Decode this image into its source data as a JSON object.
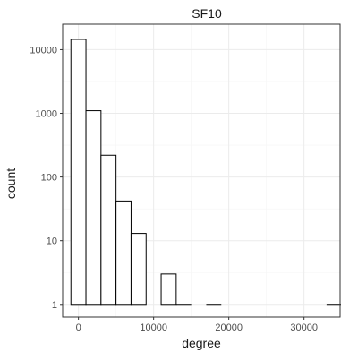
{
  "chart_data": {
    "type": "bar",
    "title": "SF10",
    "xlabel": "degree",
    "ylabel": "count",
    "y_scale": "log10",
    "grid": true,
    "x_range": [
      -2100,
      34800
    ],
    "y_range_log10": [
      -0.2,
      4.4
    ],
    "x_ticks": [
      0,
      10000,
      20000,
      30000
    ],
    "x_tick_labels": [
      "0",
      "10000",
      "20000",
      "30000"
    ],
    "y_ticks": [
      1,
      10,
      100,
      1000,
      10000
    ],
    "y_tick_labels": [
      "1",
      "10",
      "100",
      "1000",
      "10000"
    ],
    "bin_width": 2000,
    "bins": [
      {
        "x0": -1000,
        "x1": 1000,
        "count": 14500
      },
      {
        "x0": 1000,
        "x1": 3000,
        "count": 1100
      },
      {
        "x0": 3000,
        "x1": 5000,
        "count": 220
      },
      {
        "x0": 5000,
        "x1": 7000,
        "count": 42
      },
      {
        "x0": 7000,
        "x1": 9000,
        "count": 13
      },
      {
        "x0": 9000,
        "x1": 11000,
        "count": 0
      },
      {
        "x0": 11000,
        "x1": 13000,
        "count": 3
      },
      {
        "x0": 13000,
        "x1": 15000,
        "count": 1
      },
      {
        "x0": 15000,
        "x1": 17000,
        "count": 0
      },
      {
        "x0": 17000,
        "x1": 19000,
        "count": 1
      },
      {
        "x0": 19000,
        "x1": 21000,
        "count": 0
      },
      {
        "x0": 21000,
        "x1": 23000,
        "count": 0
      },
      {
        "x0": 23000,
        "x1": 25000,
        "count": 0
      },
      {
        "x0": 25000,
        "x1": 27000,
        "count": 0
      },
      {
        "x0": 27000,
        "x1": 29000,
        "count": 0
      },
      {
        "x0": 29000,
        "x1": 31000,
        "count": 0
      },
      {
        "x0": 31000,
        "x1": 33000,
        "count": 0
      },
      {
        "x0": 33000,
        "x1": 35000,
        "count": 1
      }
    ],
    "colors": {
      "bar_fill": "#ffffff",
      "bar_outline": "#000000",
      "grid_major": "#ebebeb",
      "grid_minor": "#f5f5f5",
      "panel_border": "#333333",
      "tick_text": "#4d4d4d"
    }
  }
}
